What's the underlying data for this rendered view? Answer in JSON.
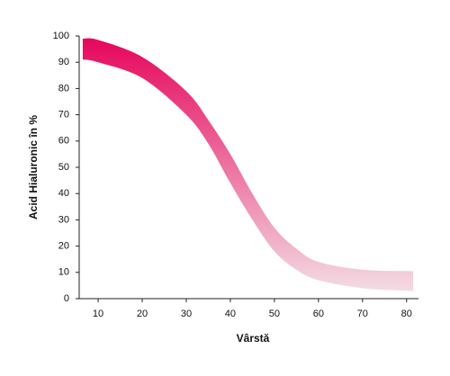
{
  "chart_data": {
    "type": "band",
    "x_label": "Vârstă",
    "y_label": "Acid Hialuronic în %",
    "x": [
      6.5,
      10,
      20,
      30,
      35,
      40,
      45,
      50,
      55,
      60,
      70,
      80,
      81.5
    ],
    "upper": [
      99,
      98.5,
      92,
      79,
      68,
      55,
      40,
      27,
      19,
      14,
      11,
      10.5,
      10.5
    ],
    "lower": [
      91,
      90,
      84,
      70,
      59,
      44,
      30,
      18,
      11,
      7,
      4,
      3,
      3
    ],
    "colors": [
      "#e6065c",
      "#f3dbe3"
    ],
    "xlim": [
      5.7,
      82.7
    ],
    "xticks": [
      10,
      20,
      30,
      40,
      50,
      60,
      70,
      80
    ],
    "ylim": [
      0,
      100
    ],
    "yticks": [
      0,
      10,
      20,
      30,
      40,
      50,
      60,
      70,
      80,
      90,
      100
    ]
  }
}
